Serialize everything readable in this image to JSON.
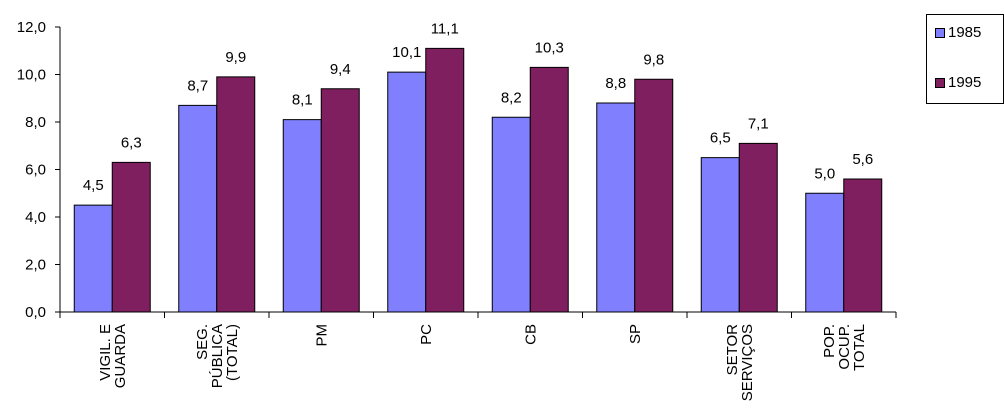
{
  "chart_data": {
    "type": "bar",
    "categories": [
      [
        "VIGIL. E",
        "GUARDA"
      ],
      [
        "SEG.",
        "PÚBLICA",
        "(TOTAL)"
      ],
      [
        "PM"
      ],
      [
        "PC"
      ],
      [
        "CB"
      ],
      [
        "SP"
      ],
      [
        "SETOR",
        "SERVIÇOS"
      ],
      [
        "POP.",
        "OCUP.",
        "TOTAL"
      ]
    ],
    "series": [
      {
        "name": "1985",
        "color": "#8080ff",
        "values": [
          4.5,
          8.7,
          8.1,
          10.1,
          8.2,
          8.8,
          6.5,
          5.0
        ],
        "labels": [
          "4,5",
          "8,7",
          "8,1",
          "10,1",
          "8,2",
          "8,8",
          "6,5",
          "5,0"
        ]
      },
      {
        "name": "1995",
        "color": "#7f1f5f",
        "values": [
          6.3,
          9.9,
          9.4,
          11.1,
          10.3,
          9.8,
          7.1,
          5.6
        ],
        "labels": [
          "6,3",
          "9,9",
          "9,4",
          "11,1",
          "10,3",
          "9,8",
          "7,1",
          "5,6"
        ]
      }
    ],
    "ylim": [
      0,
      12
    ],
    "yticks": [
      0,
      2,
      4,
      6,
      8,
      10,
      12
    ],
    "ytick_labels": [
      "0,0",
      "2,0",
      "4,0",
      "6,0",
      "8,0",
      "10,0",
      "12,0"
    ],
    "grid": false,
    "legend_position": "top-right"
  }
}
